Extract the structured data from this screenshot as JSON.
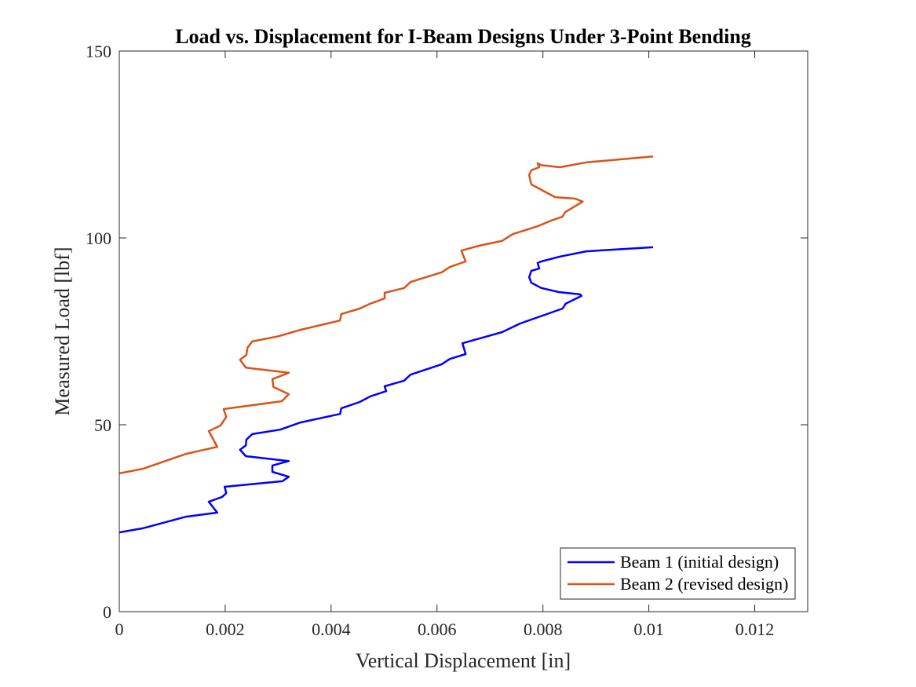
{
  "chart_data": {
    "type": "line",
    "title": "Load vs. Displacement for I-Beam Designs Under 3-Point Bending",
    "xlabel": "Vertical Displacement [in]",
    "ylabel": "Measured Load [lbf]",
    "xlim": [
      0,
      0.013
    ],
    "ylim": [
      0,
      150
    ],
    "xticks": [
      0,
      0.002,
      0.004,
      0.006,
      0.008,
      0.01,
      0.012
    ],
    "xtick_labels": [
      "0",
      "0.002",
      "0.004",
      "0.006",
      "0.008",
      "0.01",
      "0.012"
    ],
    "yticks": [
      0,
      50,
      100,
      150
    ],
    "ytick_labels": [
      "0",
      "50",
      "100",
      "150"
    ],
    "grid": false,
    "legend_position": "bottom-right",
    "series": [
      {
        "name": "Beam 1 (initial design)",
        "color": "#0000ff",
        "x": [
          0,
          0.00044,
          0.00126,
          0.00185,
          0.00169,
          0.00194,
          0.00202,
          0.00199,
          0.00308,
          0.0032,
          0.00289,
          0.00289,
          0.0032,
          0.00239,
          0.00228,
          0.00239,
          0.0024,
          0.00251,
          0.00304,
          0.00342,
          0.00417,
          0.00419,
          0.00454,
          0.00474,
          0.00504,
          0.00501,
          0.00538,
          0.0055,
          0.00609,
          0.00624,
          0.00654,
          0.00648,
          0.00723,
          0.00757,
          0.00837,
          0.00843,
          0.00873,
          0.0087,
          0.0083,
          0.00797,
          0.00778,
          0.00774,
          0.00778,
          0.00793,
          0.0079,
          0.00797,
          0.00832,
          0.00882,
          0.01008
        ],
        "y": [
          21.2,
          22.3,
          25.4,
          26.5,
          29.4,
          30.7,
          31.7,
          33.4,
          34.9,
          36.1,
          37.4,
          39.1,
          40.3,
          41.6,
          43.3,
          44.5,
          46.0,
          47.5,
          48.7,
          50.6,
          52.9,
          54.4,
          56.1,
          57.6,
          59.0,
          60.3,
          61.8,
          63.4,
          66.2,
          67.6,
          68.9,
          71.8,
          74.8,
          77.1,
          81.1,
          82.4,
          84.5,
          84.9,
          85.5,
          86.6,
          88.0,
          89.5,
          91.2,
          91.8,
          93.3,
          93.7,
          95.0,
          96.4,
          97.5
        ]
      },
      {
        "name": "Beam 2 (revised design)",
        "color": "#d95319",
        "x": [
          0,
          0.00044,
          0.00126,
          0.00185,
          0.00169,
          0.00191,
          0.00202,
          0.00197,
          0.00307,
          0.0032,
          0.00291,
          0.00289,
          0.0032,
          0.00239,
          0.00228,
          0.0024,
          0.00242,
          0.00251,
          0.00301,
          0.00342,
          0.00417,
          0.00419,
          0.00454,
          0.00474,
          0.00501,
          0.00501,
          0.00538,
          0.0055,
          0.00609,
          0.00624,
          0.00654,
          0.00646,
          0.00679,
          0.00723,
          0.00743,
          0.0079,
          0.00815,
          0.00837,
          0.00842,
          0.00875,
          0.00861,
          0.00823,
          0.00778,
          0.00774,
          0.00778,
          0.00793,
          0.0079,
          0.00796,
          0.00832,
          0.00882,
          0.01008
        ],
        "y": [
          37.0,
          38.2,
          42.2,
          44.1,
          48.3,
          49.8,
          52.1,
          54.2,
          56.3,
          58.2,
          60.1,
          62.2,
          63.9,
          65.3,
          67.4,
          68.7,
          70.6,
          72.3,
          73.7,
          75.4,
          77.9,
          79.6,
          81.1,
          82.4,
          83.8,
          85.3,
          86.6,
          88.2,
          90.8,
          92.2,
          93.7,
          96.6,
          97.9,
          99.2,
          101.0,
          103.1,
          104.6,
          105.7,
          106.9,
          109.7,
          110.5,
          110.9,
          114.3,
          116.8,
          118.1,
          118.9,
          120.0,
          119.5,
          118.9,
          120.2,
          121.8
        ]
      }
    ]
  }
}
